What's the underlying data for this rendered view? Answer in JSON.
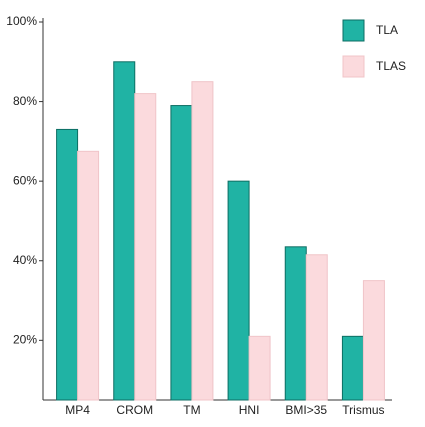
{
  "chart_data": {
    "type": "bar",
    "categories": [
      "MP4",
      "CROM",
      "TM",
      "HNI",
      "BMI>35",
      "Trismus"
    ],
    "series": [
      {
        "name": "TLA",
        "color": "#20b3a4",
        "values": [
          73,
          90,
          79,
          60,
          43.5,
          21
        ]
      },
      {
        "name": "TLAS",
        "color": "#fbdadd",
        "values": [
          67.5,
          82,
          85,
          21,
          41.5,
          35
        ]
      }
    ],
    "ylim": [
      5,
      100
    ],
    "yticks": [
      {
        "value": 20,
        "label": "20%"
      },
      {
        "value": 40,
        "label": "40%"
      },
      {
        "value": 60,
        "label": "60%"
      },
      {
        "value": 80,
        "label": "80%"
      },
      {
        "value": 100,
        "label": "100%"
      }
    ],
    "grid": false,
    "legend": "top-right"
  }
}
